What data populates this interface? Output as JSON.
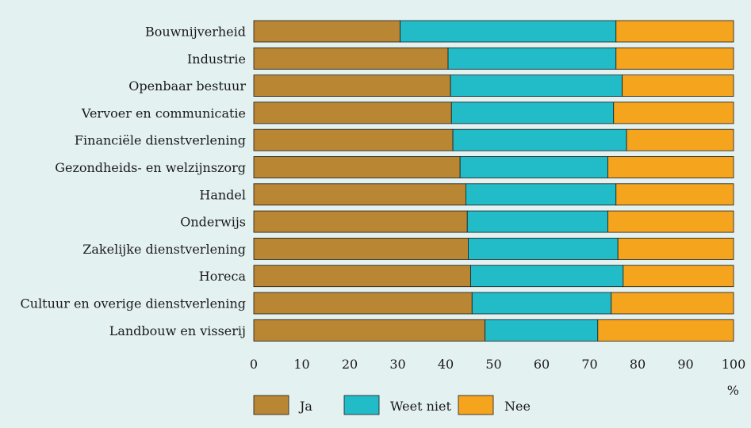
{
  "chart_data": {
    "type": "bar",
    "orientation": "horizontal",
    "stacked": true,
    "categories": [
      "Bouwnijverheid",
      "Industrie",
      "Openbaar bestuur",
      "Vervoer en communicatie",
      "Financiële dienstverlening",
      "Gezondheids- en welzijnszorg",
      "Handel",
      "Onderwijs",
      "Zakelijke dienstverlening",
      "Horeca",
      "Cultuur en overige dienstverlening",
      "Landbouw en visserij"
    ],
    "series": [
      {
        "name": "Ja",
        "color": "#b98634",
        "values": [
          30.5,
          40.5,
          41,
          41.2,
          41.5,
          43,
          44.2,
          44.5,
          44.7,
          45.2,
          45.5,
          48.2
        ]
      },
      {
        "name": "Weet niet",
        "color": "#22bcc8",
        "values": [
          45,
          35,
          35.8,
          33.8,
          36.2,
          30.8,
          31.3,
          29.3,
          31.2,
          31.8,
          29,
          23.5
        ]
      },
      {
        "name": "Nee",
        "color": "#f5a41e",
        "values": [
          24.5,
          24.5,
          23.2,
          25,
          22.3,
          26.2,
          24.5,
          26.2,
          24.1,
          23,
          25.5,
          28.3
        ]
      }
    ],
    "xlim": [
      0,
      100
    ],
    "xticks": [
      "0",
      "10",
      "20",
      "30",
      "40",
      "50",
      "60",
      "70",
      "80",
      "90",
      "100"
    ],
    "xunit": "%",
    "grid": false,
    "legend_position": "bottom"
  }
}
